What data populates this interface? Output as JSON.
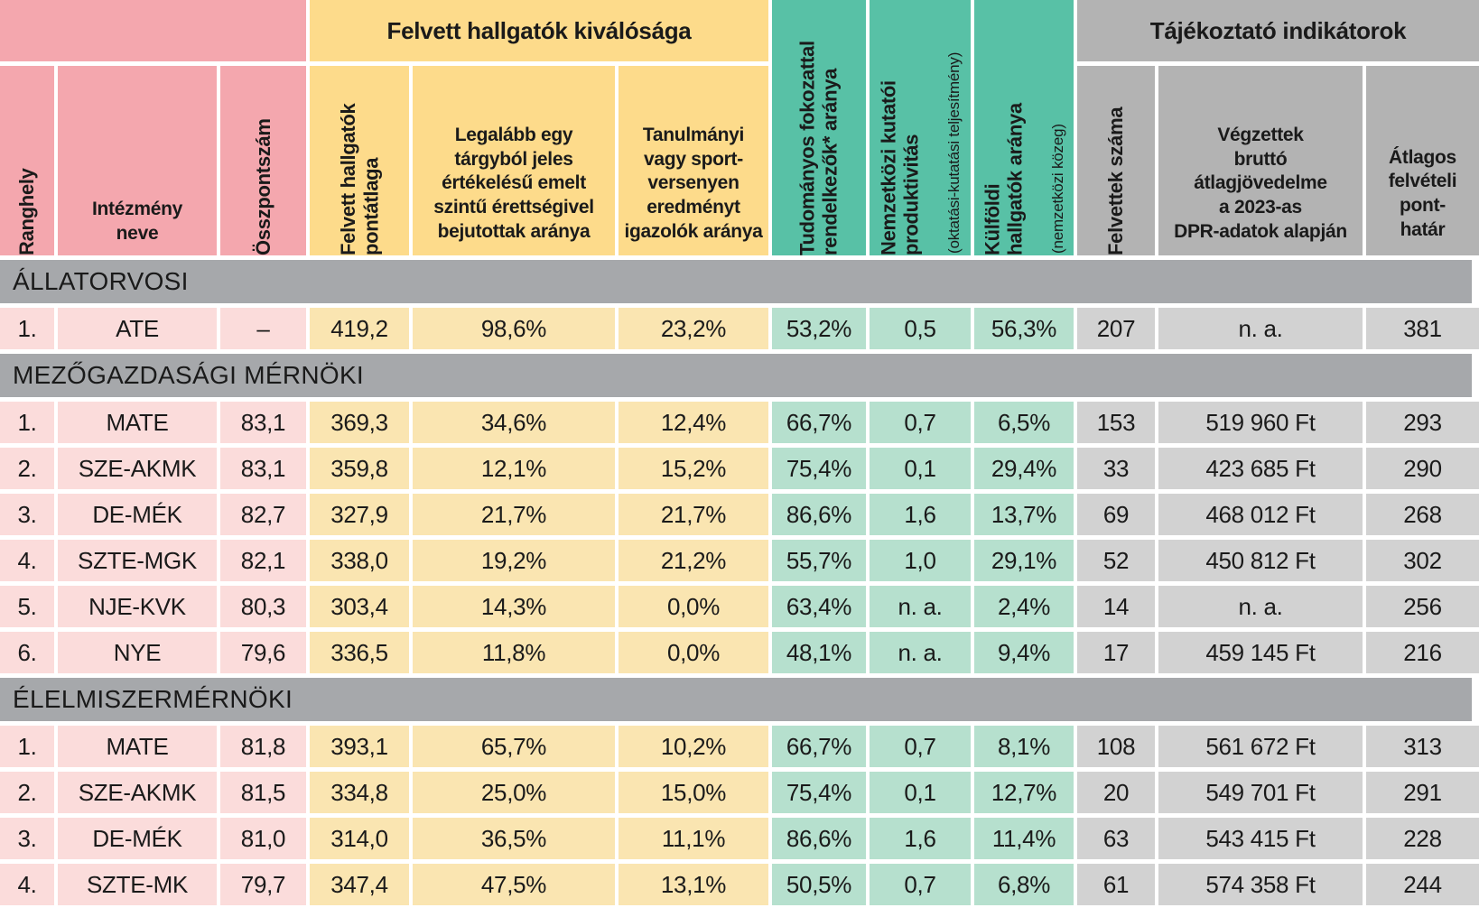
{
  "colors": {
    "pink_header": "#F4A7AE",
    "pink_cell": "#FBDCDB",
    "yellow_header": "#FDDB8B",
    "yellow_cell": "#FAE5B1",
    "teal_header": "#58C1A6",
    "teal_cell": "#B6E0CE",
    "gray_header": "#B3B3B3",
    "gray_cell": "#D2D2D2",
    "band": "#A6A8AB",
    "text": "#1A1A1A",
    "background": "#FFFFFF"
  },
  "chart_data": {
    "type": "table",
    "groups": {
      "excellence": "Felvett hallgatók kiválósága",
      "info": "Tájékoztató indikátorok"
    },
    "columns": [
      {
        "label": "Ranghely"
      },
      {
        "label": "Intézmény\nneve"
      },
      {
        "label": "Összpontszám"
      },
      {
        "label": "Felvett hallgatók\npontátlaga"
      },
      {
        "label": "Legalább egy\ntárgyból jeles\nértékelésű emelt\nszintű érettségivel\nbejutottak aránya"
      },
      {
        "label": "Tanulmányi\nvagy sport-\nversenyen\neredményt\nigazolók aránya"
      },
      {
        "label": "Tudományos fokozattal\nrendelkezők* aránya",
        "sub": ""
      },
      {
        "label": "Nemzetközi kutatói\nproduktivitás",
        "sub": "(oktatási-kutatási teljesítmény)"
      },
      {
        "label": "Külföldi\nhallgatók aránya",
        "sub": "(nemzetközi közeg)"
      },
      {
        "label": "Felvettek száma"
      },
      {
        "label": "Végzettek\nbruttó\nátlagjövedelme\na 2023-as\nDPR-adatok alapján"
      },
      {
        "label": "Átlagos\nfelvételi\npont-\nhatár"
      }
    ],
    "sections": [
      {
        "title": "ÁLLATORVOSI",
        "rows": [
          [
            "1.",
            "ATE",
            "–",
            "419,2",
            "98,6%",
            "23,2%",
            "53,2%",
            "0,5",
            "56,3%",
            "207",
            "n. a.",
            "381"
          ]
        ]
      },
      {
        "title": "MEZŐGAZDASÁGI MÉRNÖKI",
        "rows": [
          [
            "1.",
            "MATE",
            "83,1",
            "369,3",
            "34,6%",
            "12,4%",
            "66,7%",
            "0,7",
            "6,5%",
            "153",
            "519 960 Ft",
            "293"
          ],
          [
            "2.",
            "SZE-AKMK",
            "83,1",
            "359,8",
            "12,1%",
            "15,2%",
            "75,4%",
            "0,1",
            "29,4%",
            "33",
            "423 685 Ft",
            "290"
          ],
          [
            "3.",
            "DE-MÉK",
            "82,7",
            "327,9",
            "21,7%",
            "21,7%",
            "86,6%",
            "1,6",
            "13,7%",
            "69",
            "468 012 Ft",
            "268"
          ],
          [
            "4.",
            "SZTE-MGK",
            "82,1",
            "338,0",
            "19,2%",
            "21,2%",
            "55,7%",
            "1,0",
            "29,1%",
            "52",
            "450 812 Ft",
            "302"
          ],
          [
            "5.",
            "NJE-KVK",
            "80,3",
            "303,4",
            "14,3%",
            "0,0%",
            "63,4%",
            "n. a.",
            "2,4%",
            "14",
            "n. a.",
            "256"
          ],
          [
            "6.",
            "NYE",
            "79,6",
            "336,5",
            "11,8%",
            "0,0%",
            "48,1%",
            "n. a.",
            "9,4%",
            "17",
            "459 145 Ft",
            "216"
          ]
        ]
      },
      {
        "title": "ÉLELMISZERMÉRNÖKI",
        "rows": [
          [
            "1.",
            "MATE",
            "81,8",
            "393,1",
            "65,7%",
            "10,2%",
            "66,7%",
            "0,7",
            "8,1%",
            "108",
            "561 672 Ft",
            "313"
          ],
          [
            "2.",
            "SZE-AKMK",
            "81,5",
            "334,8",
            "25,0%",
            "15,0%",
            "75,4%",
            "0,1",
            "12,7%",
            "20",
            "549 701 Ft",
            "291"
          ],
          [
            "3.",
            "DE-MÉK",
            "81,0",
            "314,0",
            "36,5%",
            "11,1%",
            "86,6%",
            "1,6",
            "11,4%",
            "63",
            "543 415 Ft",
            "228"
          ],
          [
            "4.",
            "SZTE-MK",
            "79,7",
            "347,4",
            "47,5%",
            "13,1%",
            "50,5%",
            "0,7",
            "6,8%",
            "61",
            "574 358 Ft",
            "244"
          ]
        ]
      }
    ]
  }
}
